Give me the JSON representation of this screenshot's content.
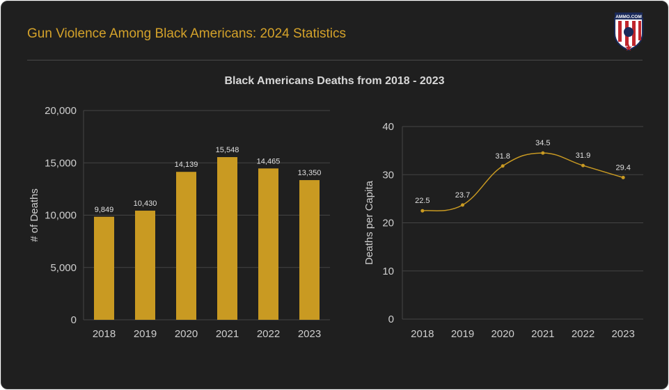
{
  "header": {
    "title": "Gun Violence Among Black Americans: 2024 Statistics",
    "logo_text": "AMMO.COM",
    "subtitle": "Black Americans Deaths from 2018 - 2023"
  },
  "colors": {
    "background": "#1f1f1f",
    "accent": "#d4a22a",
    "bar": "#c99a22",
    "line": "#c99a22",
    "grid": "#444444",
    "text": "#cfcfcf"
  },
  "chart_data": [
    {
      "type": "bar",
      "title": "",
      "xlabel": "",
      "ylabel": "# of Deaths",
      "ylim": [
        0,
        20000
      ],
      "yticks": [
        "0",
        "5,000",
        "10,000",
        "15,000",
        "20,000"
      ],
      "categories": [
        "2018",
        "2019",
        "2020",
        "2021",
        "2022",
        "2023"
      ],
      "values": [
        9849,
        10430,
        14139,
        15548,
        14465,
        13350
      ],
      "labels": [
        "9,849",
        "10,430",
        "14,139",
        "15,548",
        "14,465",
        "13,350"
      ]
    },
    {
      "type": "line",
      "title": "",
      "xlabel": "",
      "ylabel": "Deaths per Capita",
      "ylim": [
        0,
        40
      ],
      "yticks": [
        "0",
        "10",
        "20",
        "30",
        "40"
      ],
      "categories": [
        "2018",
        "2019",
        "2020",
        "2021",
        "2022",
        "2023"
      ],
      "values": [
        22.5,
        23.7,
        31.8,
        34.5,
        31.9,
        29.4
      ],
      "labels": [
        "22.5",
        "23.7",
        "31.8",
        "34.5",
        "31.9",
        "29.4"
      ]
    }
  ]
}
